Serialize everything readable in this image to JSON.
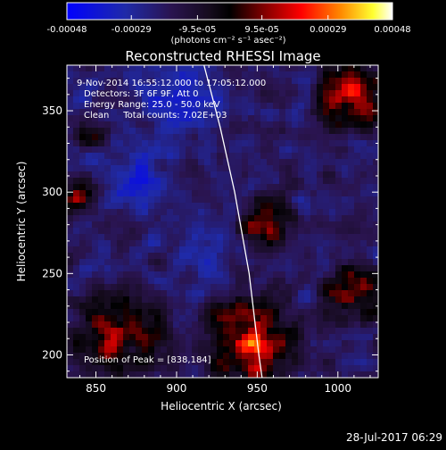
{
  "chart_data": {
    "type": "heatmap",
    "title": "Reconstructed RHESSI Image",
    "xlabel": "Heliocentric X (arcsec)",
    "ylabel": "Heliocentric Y (arcsec)",
    "xlim": [
      832,
      1025
    ],
    "ylim": [
      186,
      378
    ],
    "xticks": [
      850,
      900,
      950,
      1000
    ],
    "yticks": [
      200,
      250,
      300,
      350
    ],
    "colorbar": {
      "ticks": [
        "-0.00048",
        "-0.00029",
        "-9.5e-05",
        "9.5e-05",
        "0.00029",
        "0.00048"
      ],
      "unit_line": "(photons cm⁻² s⁻¹ asec⁻²)",
      "range": [
        -0.00048,
        0.00048
      ]
    },
    "annotations": {
      "time": "9-Nov-2014 16:55:12.000 to 17:05:12.000",
      "detectors": "Detectors: 3F 6F 9F, Att 0",
      "energy": "Energy Range: 25.0 - 50.0 keV",
      "clean": "Clean     Total counts: 7.02E+03",
      "peak": "Position of Peak = [838,184]"
    },
    "footer_date": "28-Jul-2017 06:29",
    "limb_curve_x_arcsec": [
      {
        "y": 378,
        "x": 917
      },
      {
        "y": 340,
        "x": 927
      },
      {
        "y": 300,
        "x": 936
      },
      {
        "y": 250,
        "x": 945
      },
      {
        "y": 200,
        "x": 951
      },
      {
        "y": 186,
        "x": 953
      }
    ]
  }
}
